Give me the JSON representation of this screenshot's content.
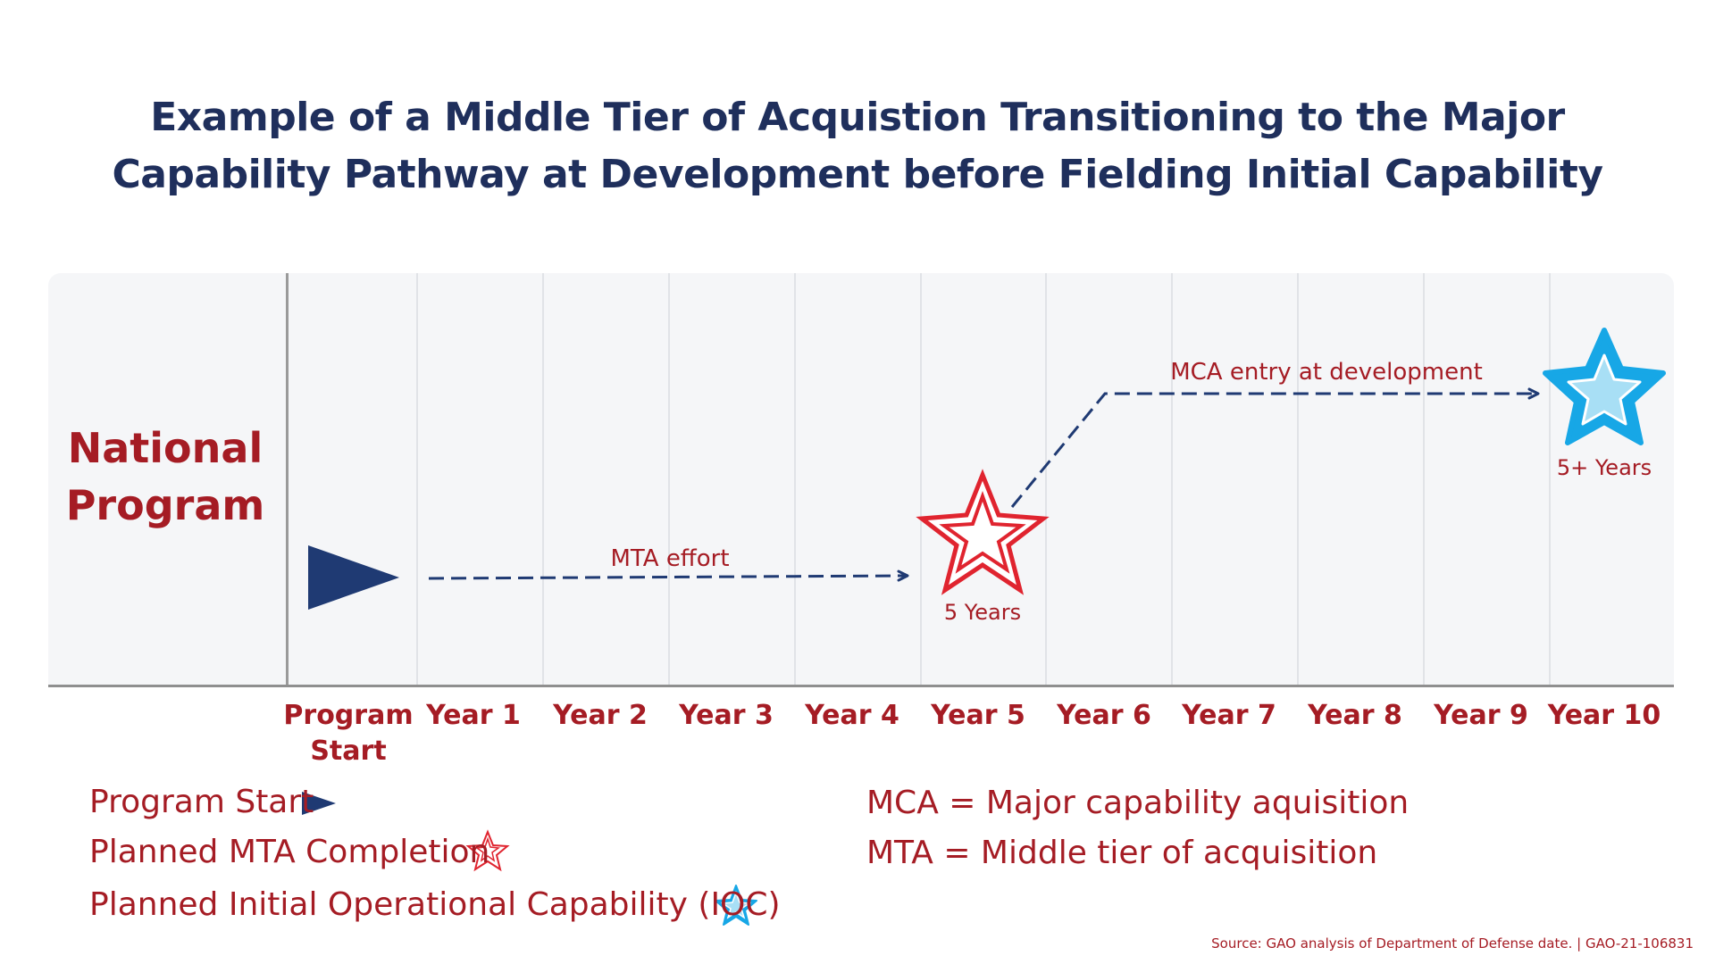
{
  "title": {
    "line1": "Example of a Middle Tier of Acquistion Transitioning to the Major",
    "line2": "Capability Pathway at Development before Fielding Initial Capability"
  },
  "row_label": {
    "line1": "National",
    "line2": "Program"
  },
  "axis": {
    "start_line1": "Program",
    "start_line2": "Start",
    "years": [
      "Year 1",
      "Year 2",
      "Year 3",
      "Year 4",
      "Year 5",
      "Year 6",
      "Year 7",
      "Year 8",
      "Year 9",
      "Year 10"
    ]
  },
  "flows": {
    "mta_effort": "MTA effort",
    "mca_entry": "MCA entry at development"
  },
  "markers": {
    "mta_completion": "5 Years",
    "ioc": "5+ Years"
  },
  "legend": {
    "program_start": "Program Start",
    "mta_completion": "Planned MTA Completion",
    "ioc": "Planned Initial Operational Capability (IOC)"
  },
  "definitions": {
    "mca": "MCA = Major capability aquisition",
    "mta": "MTA = Middle tier of acquisition"
  },
  "source": "Source: GAO analysis of Department of Defense date. | GAO-21-106831",
  "colors": {
    "title_navy": "#1f2f5c",
    "label_red": "#a51c24",
    "arrow_navy": "#1f3a73",
    "mta_star_red": "#e0242f",
    "ioc_star_blue": "#17a7e6"
  },
  "icons": {
    "program_start": "triangle-flag-icon",
    "mta_completion": "red-star-outline-icon",
    "ioc": "blue-star-icon"
  }
}
